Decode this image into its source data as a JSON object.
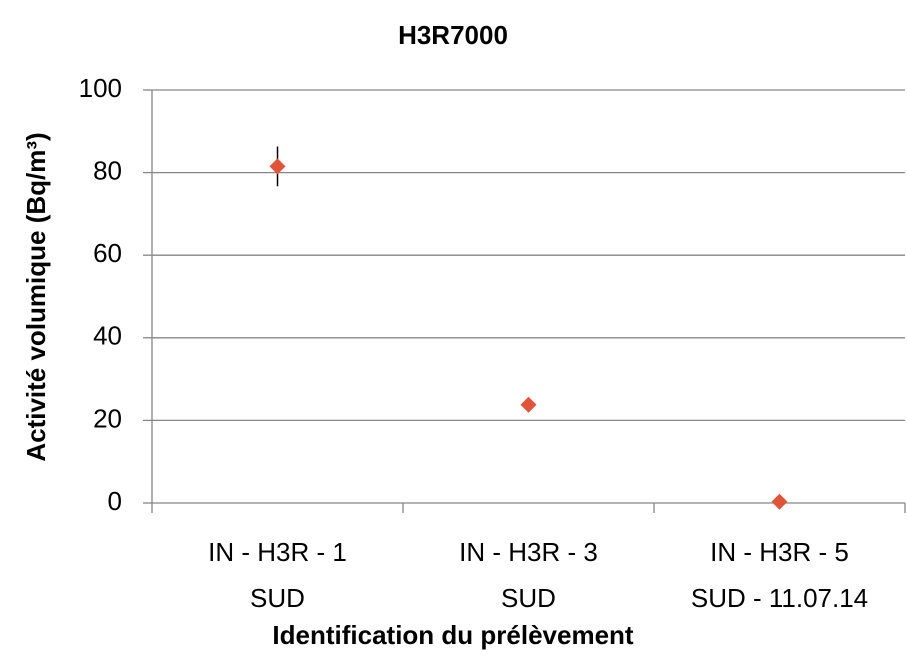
{
  "chart_data": {
    "type": "scatter",
    "title": "H3R7000",
    "x_label": "Identification du prélèvement",
    "y_label": "Activité volumique (Bq/m³)",
    "categories": [
      [
        "IN - H3R - 1",
        "SUD"
      ],
      [
        "IN - H3R - 3",
        "SUD"
      ],
      [
        "IN - H3R - 5",
        "SUD - 11.07.14"
      ]
    ],
    "values": [
      81.5,
      23.8,
      0.3
    ],
    "errors": [
      4.8,
      0.8,
      0.2
    ],
    "color": "#e0553a",
    "error_color": "#000000",
    "ylim": [
      0,
      100
    ],
    "yticks": [
      0,
      20,
      40,
      60,
      80,
      100
    ],
    "grid": true
  }
}
